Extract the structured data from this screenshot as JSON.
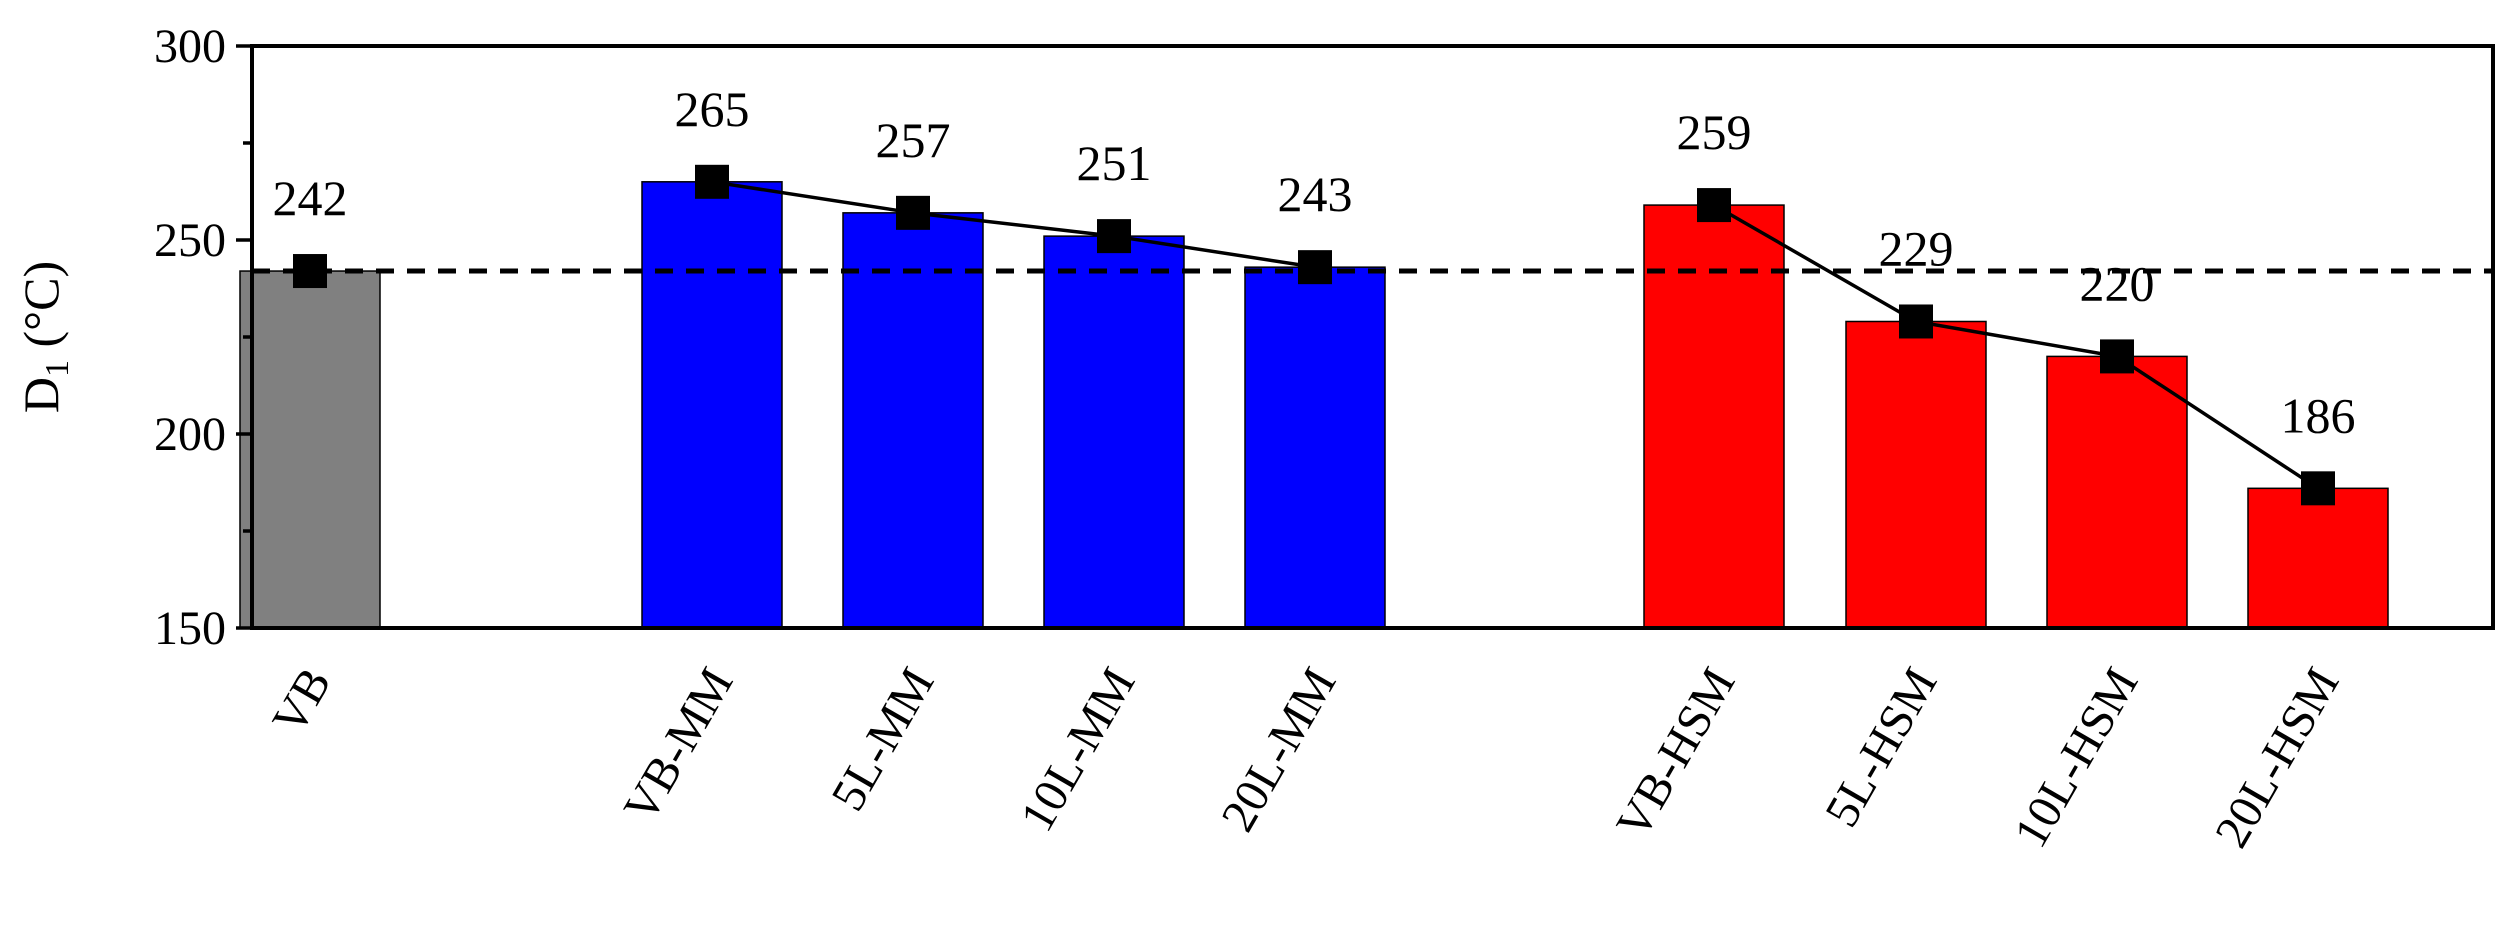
{
  "chart_data": {
    "type": "bar",
    "categories": [
      "VB",
      "VB-MM",
      "5L-MM",
      "10L-MM",
      "20L-MM",
      "VB-HSM",
      "5L-HSM",
      "10L-HSM",
      "20L-HSM"
    ],
    "groups": [
      {
        "categories": [
          "VB"
        ],
        "values": [
          242
        ],
        "color": "#808080",
        "connected": false
      },
      {
        "categories": [
          "VB-MM",
          "5L-MM",
          "10L-MM",
          "20L-MM"
        ],
        "values": [
          265,
          257,
          251,
          243
        ],
        "color": "#0000ff",
        "connected": true
      },
      {
        "categories": [
          "VB-HSM",
          "5L-HSM",
          "10L-HSM",
          "20L-HSM"
        ],
        "values": [
          259,
          229,
          220,
          186
        ],
        "color": "#ff0000",
        "connected": true
      }
    ],
    "values": [
      242,
      265,
      257,
      251,
      243,
      259,
      229,
      220,
      186
    ],
    "data_labels": [
      "242",
      "265",
      "257",
      "251",
      "243",
      "259",
      "229",
      "220",
      "186"
    ],
    "ylabel": {
      "main": "D",
      "sub": "1",
      "unit": " (°C)"
    },
    "xlabel": "",
    "title": "",
    "ylim": [
      150,
      300
    ],
    "yticks": [
      150,
      200,
      250,
      300
    ],
    "reference_line": {
      "value": 242,
      "style": "dashed",
      "color": "#000000"
    },
    "marker": {
      "shape": "square",
      "color": "#000000"
    },
    "grid": false,
    "legend": "none"
  }
}
